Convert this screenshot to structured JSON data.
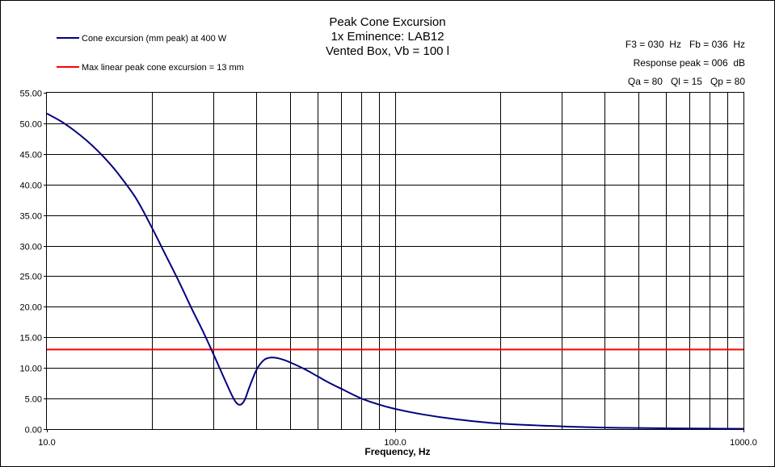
{
  "chart_data": {
    "type": "line",
    "title_lines": [
      "Peak Cone Excursion",
      "1x Eminence: LAB12",
      "Vented Box, Vb = 100 l"
    ],
    "info_lines": [
      "F3 = 030  Hz   Fb = 036  Hz",
      "Response peak = 006  dB",
      "Qa = 80   Ql = 15   Qp = 80"
    ],
    "xlabel": "Frequency,  Hz",
    "ylabel": "",
    "x_scale": "log",
    "xlim": [
      10,
      1000
    ],
    "ylim": [
      0,
      55
    ],
    "x_tick_labels": [
      "10.0",
      "100.0",
      "1000.0"
    ],
    "y_tick_labels": [
      "0.00",
      "5.00",
      "10.00",
      "15.00",
      "20.00",
      "25.00",
      "30.00",
      "35.00",
      "40.00",
      "45.00",
      "50.00",
      "55.00"
    ],
    "grid": true,
    "legend_placement": "top-left",
    "series": [
      {
        "name": "Cone excursion (mm peak) at 400 W",
        "color": "#000080",
        "points": [
          [
            10,
            51.6
          ],
          [
            11,
            50.3
          ],
          [
            12,
            48.8
          ],
          [
            13,
            47.2
          ],
          [
            14,
            45.5
          ],
          [
            15,
            43.7
          ],
          [
            16,
            41.8
          ],
          [
            18,
            37.8
          ],
          [
            20,
            33.0
          ],
          [
            22,
            28.3
          ],
          [
            24,
            24.0
          ],
          [
            26,
            19.8
          ],
          [
            28,
            16.1
          ],
          [
            30,
            12.4
          ],
          [
            32,
            8.8
          ],
          [
            34,
            5.5
          ],
          [
            35,
            4.3
          ],
          [
            36,
            4.0
          ],
          [
            37,
            4.8
          ],
          [
            38,
            6.6
          ],
          [
            40,
            9.7
          ],
          [
            42,
            11.3
          ],
          [
            44,
            11.7
          ],
          [
            46,
            11.6
          ],
          [
            48,
            11.3
          ],
          [
            50,
            10.9
          ],
          [
            55,
            9.8
          ],
          [
            60,
            8.6
          ],
          [
            65,
            7.5
          ],
          [
            70,
            6.6
          ],
          [
            80,
            5.0
          ],
          [
            90,
            4.0
          ],
          [
            100,
            3.3
          ],
          [
            120,
            2.4
          ],
          [
            150,
            1.6
          ],
          [
            200,
            0.9
          ],
          [
            300,
            0.45
          ],
          [
            400,
            0.25
          ],
          [
            500,
            0.18
          ],
          [
            700,
            0.1
          ],
          [
            1000,
            0.05
          ]
        ]
      },
      {
        "name": "Max linear peak cone excursion = 13 mm",
        "color": "#ff0000",
        "points": [
          [
            10,
            13
          ],
          [
            1000,
            13
          ]
        ]
      }
    ]
  }
}
